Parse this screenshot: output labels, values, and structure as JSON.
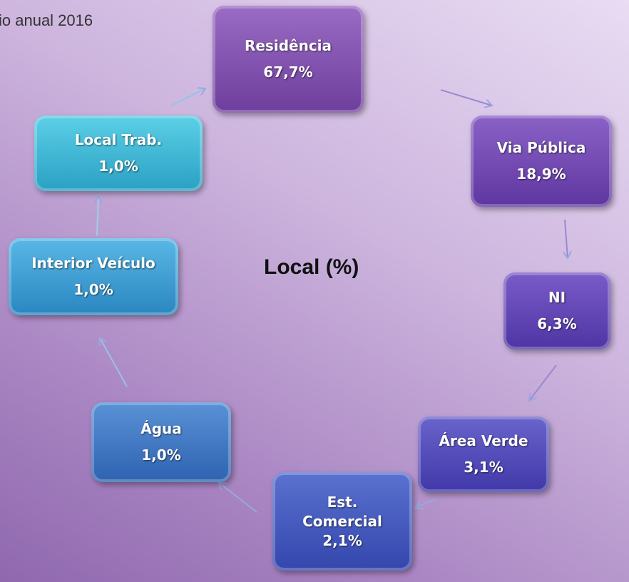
{
  "header": {
    "title": "io anual 2016"
  },
  "center": {
    "title": "Local (%)"
  },
  "nodes": [
    {
      "label": "Residência",
      "value": "67,7%"
    },
    {
      "label": "Via Pública",
      "value": "18,9%"
    },
    {
      "label": "NI",
      "value": "6,3%"
    },
    {
      "label": "Área Verde",
      "value": "3,1%"
    },
    {
      "label": "Est. Comercial",
      "value": "2,1%"
    },
    {
      "label": "Água",
      "value": "1,0%"
    },
    {
      "label": "Interior Veículo",
      "value": "1,0%"
    },
    {
      "label": "Local Trab.",
      "value": "1,0%"
    }
  ]
}
